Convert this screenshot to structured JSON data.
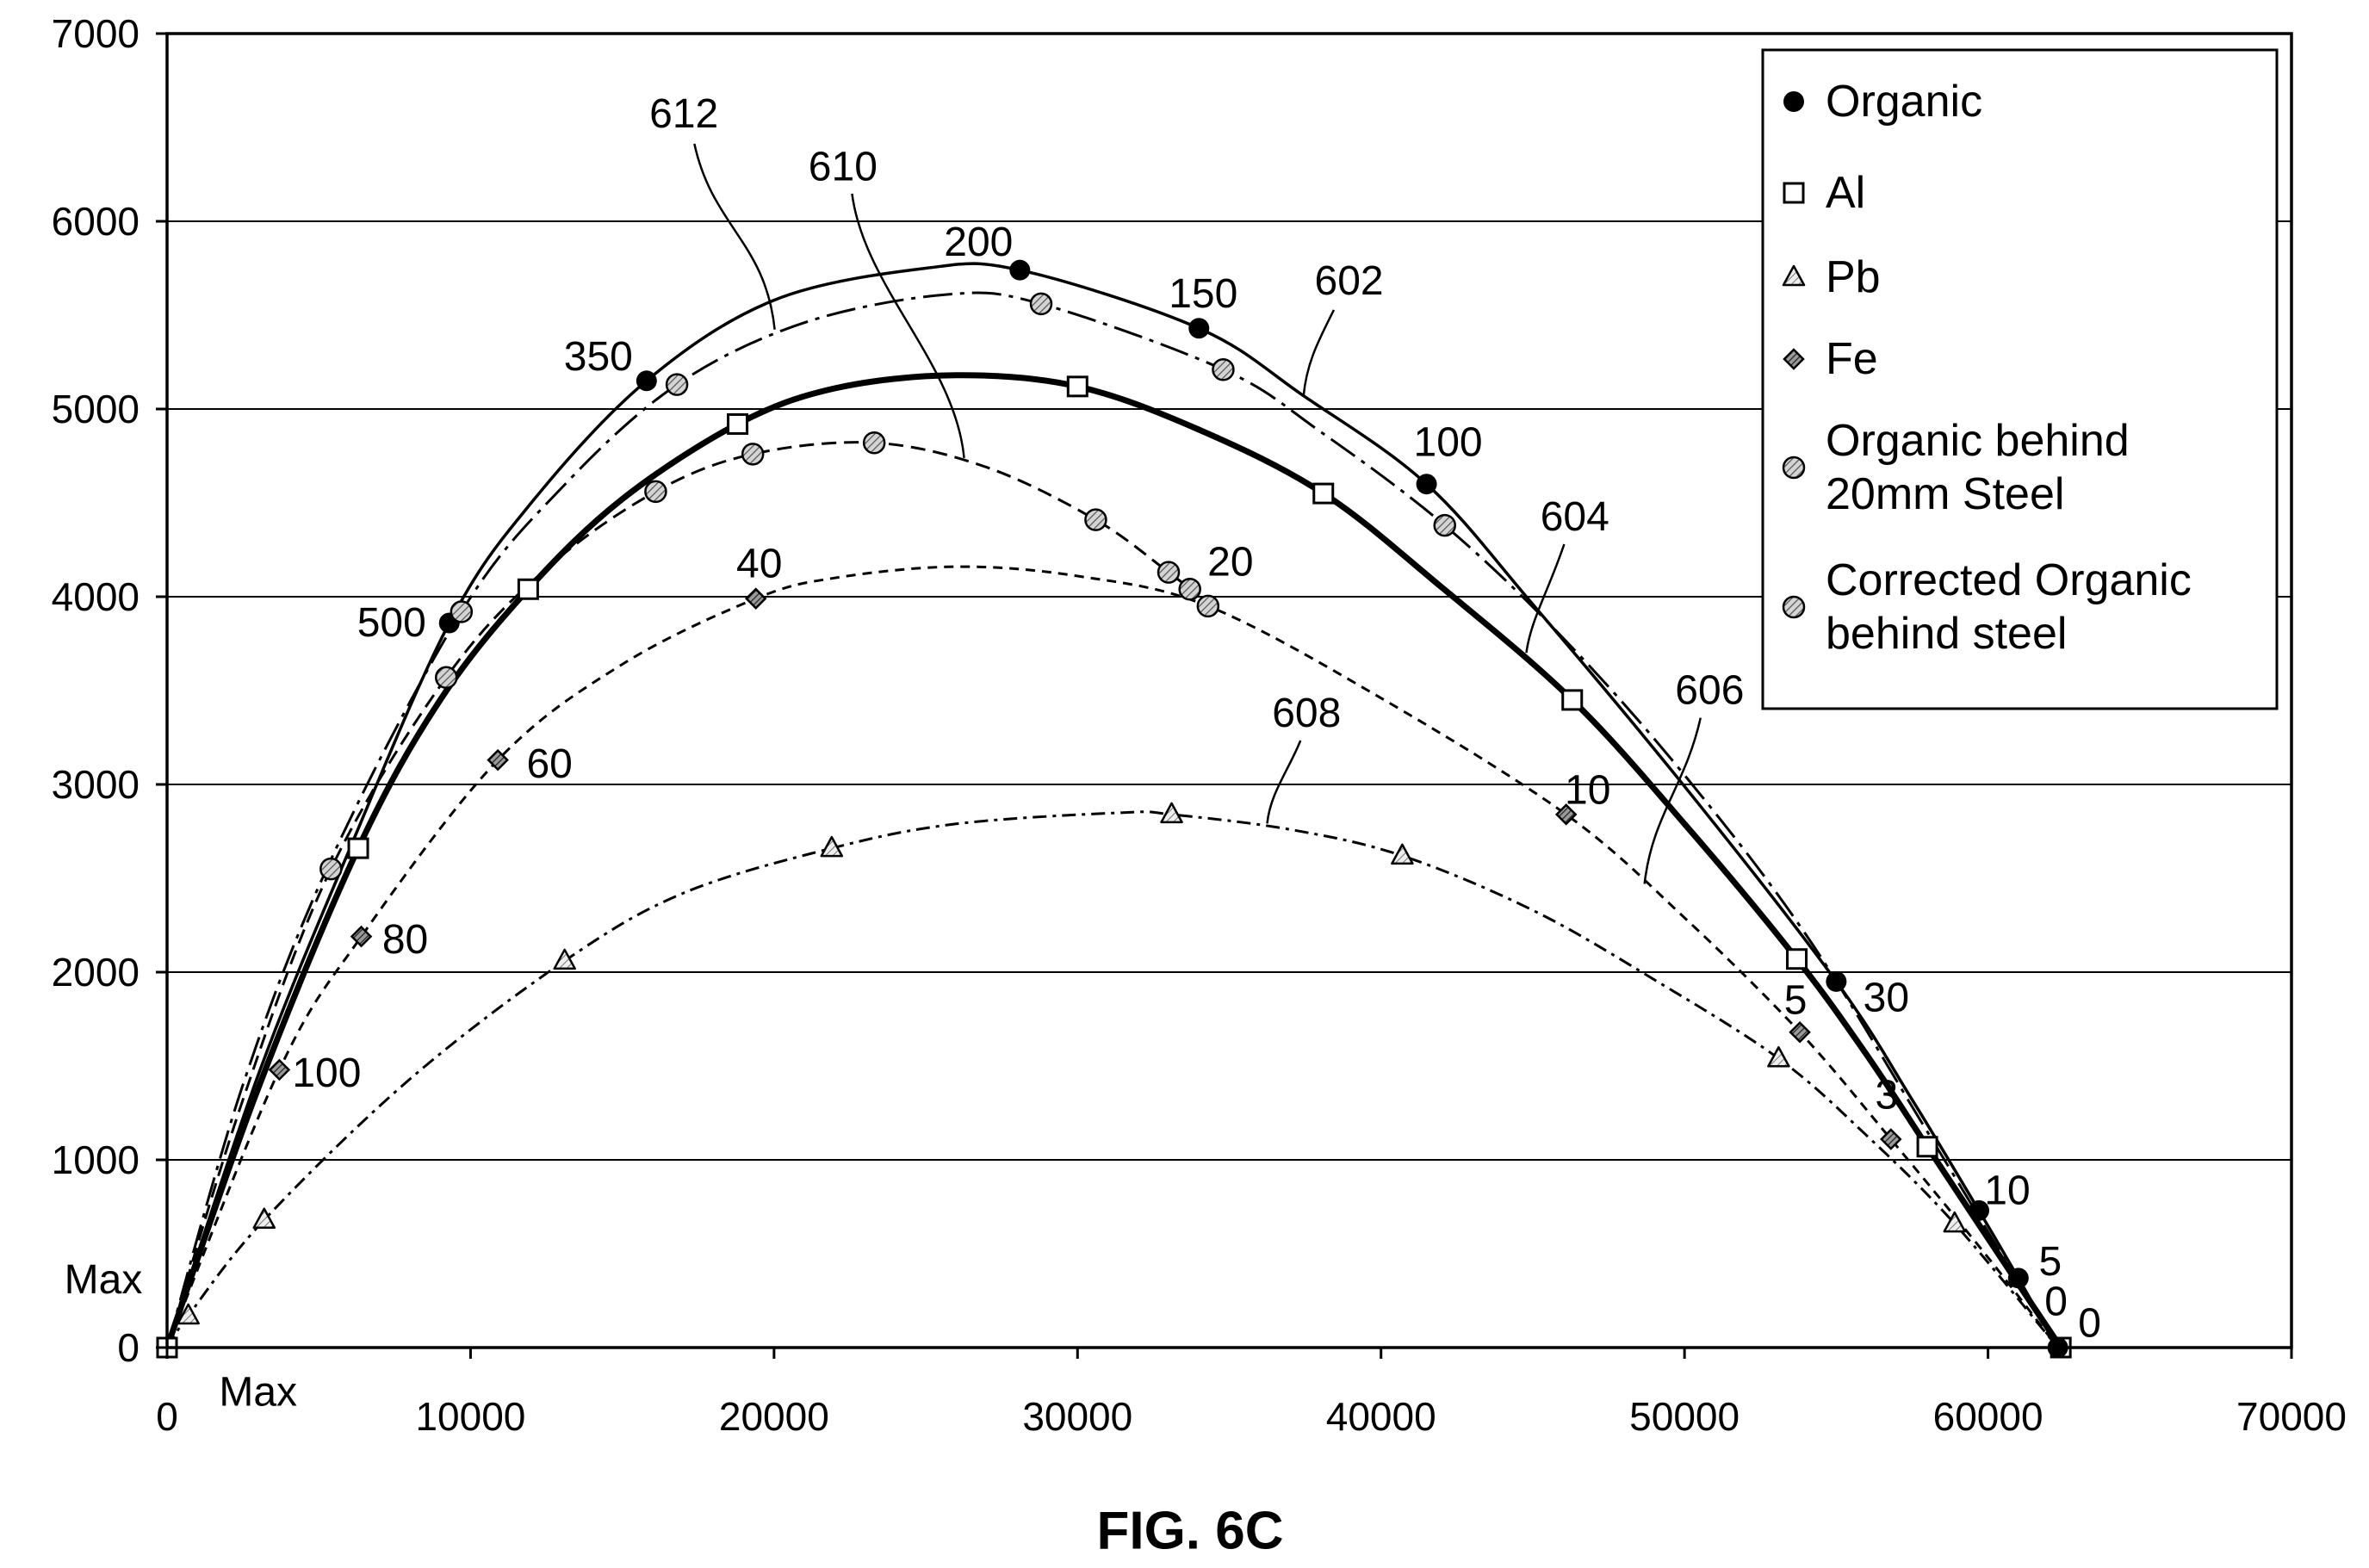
{
  "figure": {
    "caption": "FIG. 6C"
  },
  "chart_data": {
    "type": "line",
    "xlim": [
      0,
      70000
    ],
    "ylim": [
      0,
      7000
    ],
    "x_ticks": [
      0,
      10000,
      20000,
      30000,
      40000,
      50000,
      60000,
      70000
    ],
    "y_ticks": [
      0,
      1000,
      2000,
      3000,
      4000,
      5000,
      6000,
      7000
    ],
    "grid": "horizontal",
    "legend_position": "top-right",
    "axis_notes": {
      "x": "Max",
      "y": "Max"
    },
    "colors": {
      "ink": "#000000",
      "hatch": "#555555"
    },
    "series": [
      {
        "name": "Organic",
        "ref": "602",
        "marker": "filled-circle",
        "line": "solid",
        "points": [
          {
            "x": 9300,
            "y": 3860,
            "label": "500"
          },
          {
            "x": 15800,
            "y": 5150,
            "label": "350"
          },
          {
            "x": 28100,
            "y": 5740,
            "label": "200"
          },
          {
            "x": 34000,
            "y": 5430,
            "label": "150"
          },
          {
            "x": 41500,
            "y": 4600,
            "label": "100"
          },
          {
            "x": 55000,
            "y": 1950,
            "label": "30"
          },
          {
            "x": 59700,
            "y": 730,
            "label": "10"
          },
          {
            "x": 61000,
            "y": 370,
            "label": "5"
          },
          {
            "x": 62300,
            "y": 0,
            "label": "0"
          }
        ],
        "curve": [
          [
            0,
            0
          ],
          [
            3000,
            1450
          ],
          [
            6000,
            2650
          ],
          [
            9300,
            3860
          ],
          [
            12000,
            4500
          ],
          [
            15800,
            5150
          ],
          [
            20000,
            5580
          ],
          [
            25000,
            5750
          ],
          [
            28100,
            5740
          ],
          [
            34000,
            5430
          ],
          [
            37450,
            5070
          ],
          [
            41500,
            4600
          ],
          [
            45000,
            3960
          ],
          [
            50000,
            2990
          ],
          [
            55000,
            1950
          ],
          [
            57500,
            1320
          ],
          [
            59700,
            730
          ],
          [
            61000,
            370
          ],
          [
            62300,
            0
          ]
        ]
      },
      {
        "name": "Al",
        "ref": "604",
        "marker": "open-square",
        "line": "thick-solid",
        "points": [
          {
            "x": 0,
            "y": 0
          },
          {
            "x": 6300,
            "y": 2660
          },
          {
            "x": 11900,
            "y": 4040
          },
          {
            "x": 18800,
            "y": 4920
          },
          {
            "x": 30000,
            "y": 5120
          },
          {
            "x": 38100,
            "y": 4550
          },
          {
            "x": 46300,
            "y": 3450
          },
          {
            "x": 53700,
            "y": 2070
          },
          {
            "x": 58000,
            "y": 1070
          },
          {
            "x": 62400,
            "y": 0
          }
        ],
        "curve": [
          [
            0,
            0
          ],
          [
            3000,
            1380
          ],
          [
            6300,
            2660
          ],
          [
            9000,
            3450
          ],
          [
            11900,
            4040
          ],
          [
            15000,
            4520
          ],
          [
            18800,
            4920
          ],
          [
            22000,
            5110
          ],
          [
            26000,
            5180
          ],
          [
            30000,
            5120
          ],
          [
            34000,
            4890
          ],
          [
            38100,
            4550
          ],
          [
            42000,
            4050
          ],
          [
            46300,
            3450
          ],
          [
            50000,
            2790
          ],
          [
            53700,
            2070
          ],
          [
            56000,
            1560
          ],
          [
            58000,
            1070
          ],
          [
            60500,
            460
          ],
          [
            62400,
            0
          ]
        ]
      },
      {
        "name": "Pb",
        "ref": "608",
        "marker": "hatched-triangle",
        "line": "dash-dot",
        "points": [
          {
            "x": 700,
            "y": 170
          },
          {
            "x": 3200,
            "y": 680
          },
          {
            "x": 13100,
            "y": 2060
          },
          {
            "x": 21900,
            "y": 2660
          },
          {
            "x": 33100,
            "y": 2840
          },
          {
            "x": 40700,
            "y": 2620
          },
          {
            "x": 53100,
            "y": 1540
          },
          {
            "x": 58900,
            "y": 660
          }
        ],
        "curve": [
          [
            0,
            0
          ],
          [
            700,
            170
          ],
          [
            3200,
            680
          ],
          [
            8000,
            1430
          ],
          [
            13100,
            2060
          ],
          [
            17000,
            2420
          ],
          [
            21900,
            2660
          ],
          [
            26000,
            2790
          ],
          [
            31500,
            2850
          ],
          [
            33100,
            2840
          ],
          [
            37000,
            2760
          ],
          [
            40700,
            2620
          ],
          [
            45000,
            2330
          ],
          [
            49000,
            1960
          ],
          [
            53100,
            1540
          ],
          [
            56000,
            1130
          ],
          [
            58900,
            660
          ],
          [
            62300,
            0
          ]
        ]
      },
      {
        "name": "Fe",
        "ref": "606",
        "marker": "hatched-diamond",
        "line": "short-dashed",
        "points": [
          {
            "x": 3700,
            "y": 1480,
            "label": "100"
          },
          {
            "x": 6400,
            "y": 2190,
            "label": "80"
          },
          {
            "x": 10900,
            "y": 3130,
            "label": "60"
          },
          {
            "x": 19400,
            "y": 3990,
            "label": "40"
          },
          {
            "x": 34300,
            "y": 3950,
            "label": "20"
          },
          {
            "x": 46100,
            "y": 2840,
            "label": "10"
          },
          {
            "x": 53800,
            "y": 1680,
            "label": "5"
          },
          {
            "x": 56800,
            "y": 1110,
            "label": "3"
          },
          {
            "x": 62300,
            "y": 0,
            "label": "0"
          }
        ],
        "curve": [
          [
            0,
            0
          ],
          [
            3700,
            1480
          ],
          [
            6400,
            2190
          ],
          [
            10900,
            3130
          ],
          [
            15000,
            3640
          ],
          [
            19400,
            3990
          ],
          [
            22000,
            4100
          ],
          [
            26000,
            4160
          ],
          [
            30000,
            4110
          ],
          [
            34300,
            3950
          ],
          [
            40000,
            3460
          ],
          [
            46100,
            2840
          ],
          [
            50000,
            2290
          ],
          [
            53800,
            1680
          ],
          [
            56800,
            1110
          ],
          [
            60000,
            480
          ],
          [
            62300,
            0
          ]
        ]
      },
      {
        "name": "Organic behind 20mm Steel",
        "ref": "610",
        "marker": "hatched-circle",
        "line": "dashed",
        "points": [
          {
            "x": 5400,
            "y": 2550
          },
          {
            "x": 9200,
            "y": 3570
          },
          {
            "x": 16100,
            "y": 4560
          },
          {
            "x": 19300,
            "y": 4760
          },
          {
            "x": 23300,
            "y": 4820
          },
          {
            "x": 30600,
            "y": 4410
          },
          {
            "x": 33000,
            "y": 4130
          },
          {
            "x": 33700,
            "y": 4040
          },
          {
            "x": 34300,
            "y": 3950
          }
        ],
        "curve": [
          [
            0,
            0
          ],
          [
            2500,
            1320
          ],
          [
            5400,
            2550
          ],
          [
            9200,
            3570
          ],
          [
            12500,
            4150
          ],
          [
            16100,
            4560
          ],
          [
            19300,
            4760
          ],
          [
            23300,
            4820
          ],
          [
            27000,
            4690
          ],
          [
            30600,
            4410
          ],
          [
            33000,
            4130
          ],
          [
            33700,
            4040
          ],
          [
            34300,
            3950
          ]
        ]
      },
      {
        "name": "Corrected Organic behind steel",
        "ref": "612",
        "marker": "hatched-circle",
        "line": "long-dash-dot",
        "points": [
          {
            "x": 9700,
            "y": 3920
          },
          {
            "x": 16800,
            "y": 5130
          },
          {
            "x": 28800,
            "y": 5560
          },
          {
            "x": 34800,
            "y": 5210
          },
          {
            "x": 42100,
            "y": 4380
          }
        ],
        "curve": [
          [
            0,
            0
          ],
          [
            2500,
            1400
          ],
          [
            5400,
            2600
          ],
          [
            9700,
            3920
          ],
          [
            13000,
            4580
          ],
          [
            16800,
            5130
          ],
          [
            21000,
            5460
          ],
          [
            25700,
            5610
          ],
          [
            28800,
            5560
          ],
          [
            34800,
            5210
          ],
          [
            38000,
            4880
          ],
          [
            42100,
            4380
          ],
          [
            46000,
            3780
          ],
          [
            50000,
            3050
          ],
          [
            54000,
            2200
          ],
          [
            58000,
            1150
          ],
          [
            62300,
            0
          ]
        ]
      }
    ]
  }
}
